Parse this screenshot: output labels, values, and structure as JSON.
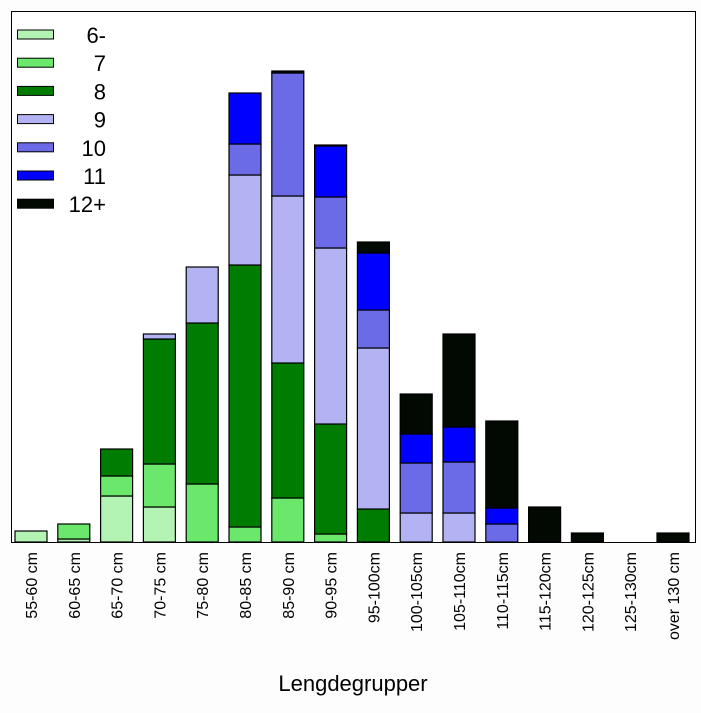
{
  "chart_data": {
    "type": "bar",
    "stacked": true,
    "title": "",
    "xlabel": "Lengdegrupper",
    "ylabel": "",
    "ylim": [
      0,
      530
    ],
    "grid": false,
    "legend_position": "top-left",
    "categories": [
      "55-60 cm",
      "60-65 cm",
      "65-70 cm",
      "70-75 cm",
      "75-80 cm",
      "80-85 cm",
      "85-90 cm",
      "90-95 cm",
      "95-100cm",
      "100-105cm",
      "105-110cm",
      "110-115cm",
      "115-120cm",
      "120-125cm",
      "125-130cm",
      "over 130 cm"
    ],
    "series": [
      {
        "name": "6-",
        "color": "#b3f3b3",
        "values": [
          11,
          3,
          46,
          35,
          0,
          0,
          0,
          0,
          0,
          0,
          0,
          0,
          0,
          0,
          0,
          0
        ]
      },
      {
        "name": "7",
        "color": "#6be86b",
        "values": [
          0,
          15,
          20,
          43,
          58,
          15,
          44,
          8,
          0,
          0,
          0,
          0,
          0,
          0,
          0,
          0
        ]
      },
      {
        "name": "8",
        "color": "#007c00",
        "values": [
          0,
          0,
          27,
          125,
          161,
          262,
          135,
          110,
          33,
          0,
          0,
          0,
          0,
          0,
          0,
          0
        ]
      },
      {
        "name": "9",
        "color": "#b3b3f3",
        "values": [
          0,
          0,
          0,
          5,
          56,
          90,
          167,
          176,
          161,
          29,
          29,
          0,
          0,
          0,
          0,
          0
        ]
      },
      {
        "name": "10",
        "color": "#6b6be8",
        "values": [
          0,
          0,
          0,
          0,
          0,
          31,
          123,
          51,
          38,
          50,
          51,
          18,
          0,
          0,
          0,
          0
        ]
      },
      {
        "name": "11",
        "color": "#0000ff",
        "values": [
          0,
          0,
          0,
          0,
          0,
          51,
          0,
          51,
          57,
          29,
          35,
          16,
          0,
          0,
          0,
          0
        ]
      },
      {
        "name": "12+",
        "color": "#020802",
        "values": [
          0,
          0,
          0,
          0,
          0,
          0,
          2,
          1,
          11,
          40,
          93,
          87,
          35,
          9,
          0,
          9
        ]
      }
    ]
  }
}
